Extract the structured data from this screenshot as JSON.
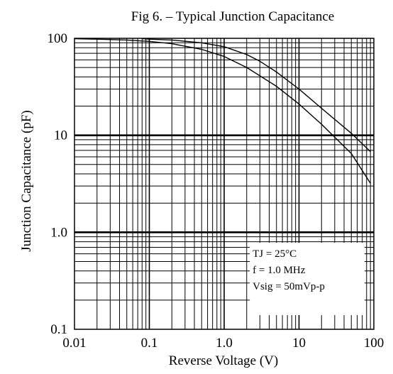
{
  "chart_data": {
    "type": "line",
    "title": "Fig 6.  –  Typical Junction Capacitance",
    "xlabel": "Reverse Voltage (V)",
    "ylabel": "Junction Capacitance (pF)",
    "xscale": "log",
    "yscale": "log",
    "xlim": [
      0.01,
      100
    ],
    "ylim": [
      0.1,
      100
    ],
    "grid": true,
    "x_ticks": [
      {
        "value": 0.01,
        "label": "0.01"
      },
      {
        "value": 0.1,
        "label": "0.1"
      },
      {
        "value": 1,
        "label": "1.0"
      },
      {
        "value": 10,
        "label": "10"
      },
      {
        "value": 100,
        "label": "100"
      }
    ],
    "y_ticks": [
      {
        "value": 0.1,
        "label": "0.1"
      },
      {
        "value": 1,
        "label": "1.0"
      },
      {
        "value": 10,
        "label": "10"
      },
      {
        "value": 100,
        "label": "100"
      }
    ],
    "series": [
      {
        "x": [
          0.01,
          0.02,
          0.05,
          0.1,
          0.2,
          0.5,
          1,
          2,
          5,
          10,
          20,
          50,
          90
        ],
        "y": [
          99,
          98,
          96,
          93,
          88,
          77,
          65,
          50,
          32,
          21,
          13,
          6.5,
          3.2
        ]
      },
      {
        "x": [
          0.08,
          0.1,
          0.2,
          0.5,
          1,
          2,
          3,
          5,
          10,
          20,
          50,
          90
        ],
        "y": [
          99,
          98,
          96,
          90,
          82,
          68,
          58,
          45,
          30,
          19,
          10.5,
          6.8
        ]
      }
    ],
    "annotations": [
      "TJ = 25°C",
      "f = 1.0 MHz",
      "Vsig = 50mVp-p"
    ],
    "line_color": "#000000"
  }
}
